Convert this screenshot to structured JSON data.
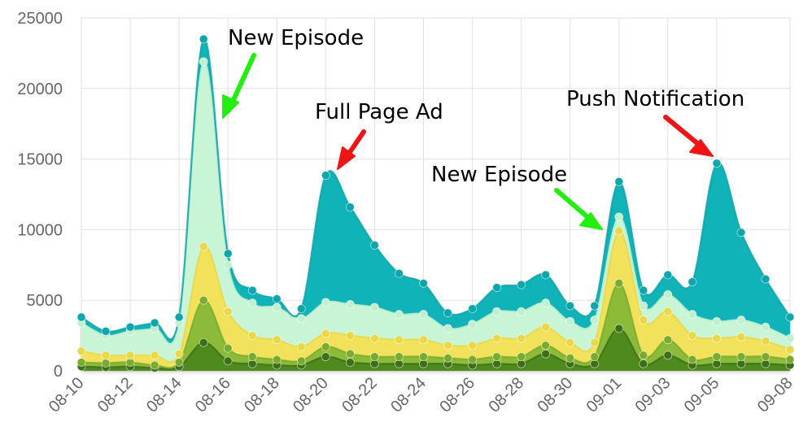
{
  "chart_data": {
    "type": "area",
    "stacked": true,
    "smooth": true,
    "grid": true,
    "legend": "none",
    "title": "",
    "xlabel": "",
    "ylabel": "",
    "ylim": [
      0,
      25000
    ],
    "y_ticks": [
      0,
      5000,
      10000,
      15000,
      20000,
      25000
    ],
    "y_tick_labels": [
      "0",
      "5000",
      "10000",
      "15000",
      "20000",
      "25000"
    ],
    "x_tick_labels": [
      "08-10",
      "08-12",
      "08-14",
      "08-16",
      "08-18",
      "08-20",
      "08-22",
      "08-24",
      "08-26",
      "08-28",
      "08-30",
      "09-01",
      "09-03",
      "09-05",
      "09-08"
    ],
    "x_tick_days": [
      0,
      2,
      4,
      6,
      8,
      10,
      12,
      14,
      16,
      18,
      20,
      22,
      24,
      26,
      29
    ],
    "x": [
      "08-10",
      "08-11",
      "08-12",
      "08-13",
      "08-14",
      "08-15",
      "08-16",
      "08-17",
      "08-18",
      "08-19",
      "08-20",
      "08-21",
      "08-22",
      "08-23",
      "08-24",
      "08-25",
      "08-26",
      "08-27",
      "08-28",
      "08-29",
      "08-30",
      "08-31",
      "09-01",
      "09-02",
      "09-03",
      "09-04",
      "09-05",
      "09-06",
      "09-07",
      "09-08"
    ],
    "series": [
      {
        "color": "#4e8a1e",
        "point_color": "#3d7016",
        "values": [
          300,
          250,
          300,
          200,
          300,
          2000,
          700,
          500,
          400,
          400,
          1000,
          600,
          500,
          500,
          500,
          500,
          400,
          500,
          500,
          1200,
          500,
          500,
          3000,
          500,
          1100,
          400,
          500,
          500,
          500,
          400
        ]
      },
      {
        "color": "#8cbb3a",
        "point_color": "#7aab2c",
        "values": [
          300,
          300,
          300,
          200,
          300,
          3000,
          900,
          500,
          400,
          300,
          700,
          600,
          500,
          500,
          500,
          400,
          400,
          500,
          500,
          600,
          400,
          500,
          3200,
          600,
          1100,
          400,
          500,
          500,
          500,
          400
        ]
      },
      {
        "color": "#f2e15a",
        "point_color": "#e9d84a",
        "values": [
          800,
          550,
          500,
          700,
          600,
          3800,
          2600,
          1500,
          1400,
          1000,
          950,
          1300,
          1300,
          1200,
          1200,
          900,
          1000,
          1300,
          1300,
          1300,
          1100,
          1000,
          3700,
          2500,
          2000,
          1700,
          1300,
          1400,
          1100,
          700
        ]
      },
      {
        "color": "#c8f5d5",
        "point_color": "#c0f0cf",
        "values": [
          2000,
          1400,
          1700,
          1900,
          2200,
          13100,
          3300,
          2300,
          2300,
          2000,
          2200,
          2200,
          2200,
          1800,
          1800,
          1200,
          1500,
          1900,
          1900,
          1700,
          1500,
          1600,
          1000,
          1000,
          1200,
          1500,
          1200,
          1200,
          1000,
          800
        ]
      },
      {
        "color": "#0fb3b8",
        "point_color": "#0ea6ab",
        "values": [
          400,
          300,
          300,
          400,
          400,
          1600,
          800,
          900,
          600,
          700,
          9000,
          6900,
          4400,
          2900,
          2200,
          1100,
          1100,
          1700,
          1900,
          2000,
          1100,
          1000,
          2500,
          1100,
          1400,
          2300,
          11200,
          6200,
          3400,
          1500
        ]
      }
    ],
    "annotations": [
      {
        "text": "New Episode",
        "arrow_color": "#22ee10"
      },
      {
        "text": "Full Page Ad",
        "arrow_color": "#f01414"
      },
      {
        "text": "New Episode",
        "arrow_color": "#22ee10"
      },
      {
        "text": "Push Notification",
        "arrow_color": "#f01414"
      }
    ]
  }
}
